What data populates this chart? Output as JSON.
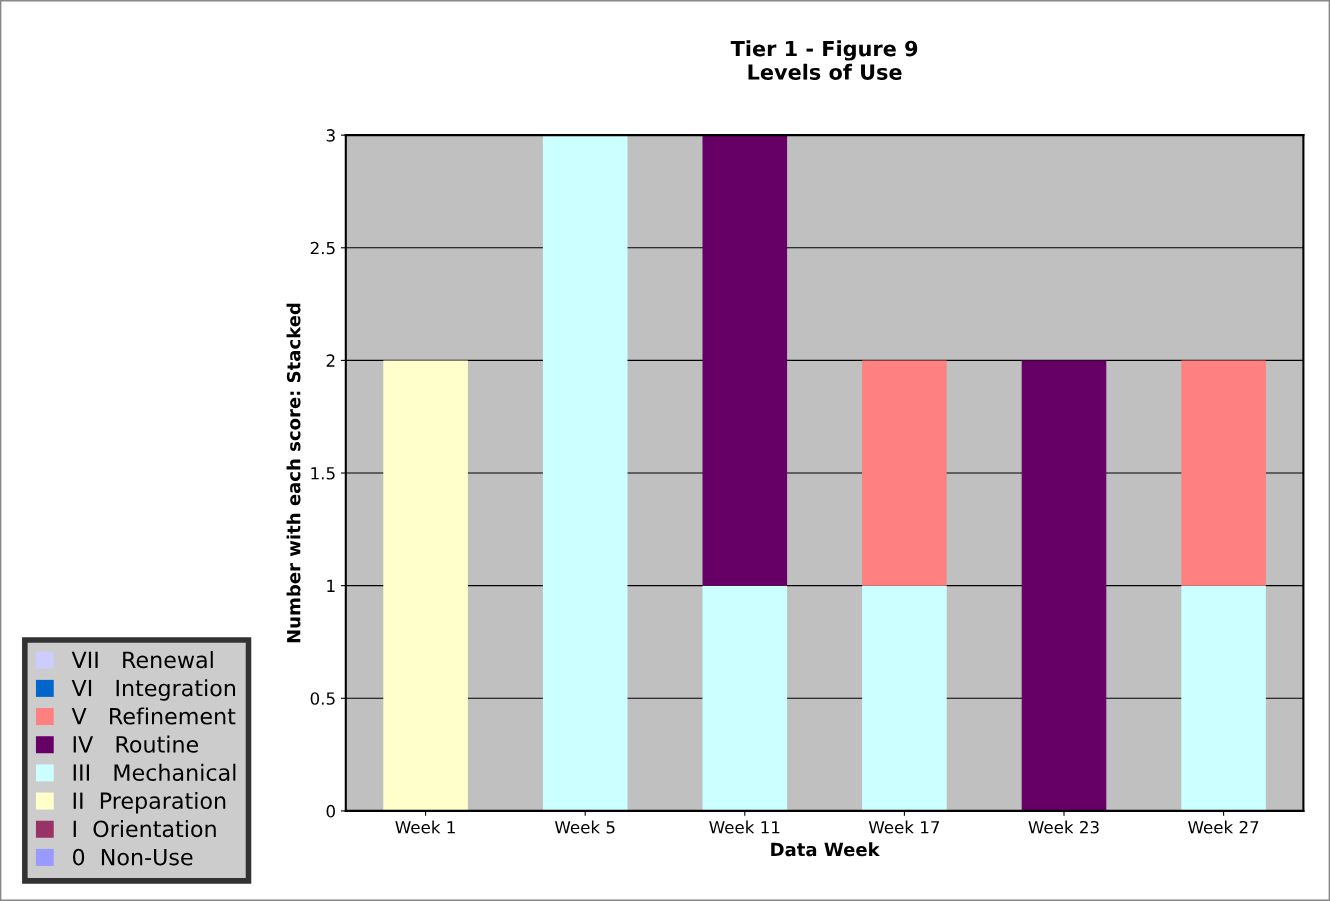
{
  "chart_data": {
    "type": "bar",
    "stacked": true,
    "title": "Tier 1 - Figure 9\nLevels of Use",
    "xlabel": "Data Week",
    "ylabel": "Number with each score: Stacked",
    "categories": [
      "Week 1",
      "Week 5",
      "Week 11",
      "Week 17",
      "Week 23",
      "Week 27"
    ],
    "series": [
      {
        "name": "0  Non-Use",
        "color": "#9999ff",
        "values": [
          0,
          0,
          0,
          0,
          0,
          0
        ]
      },
      {
        "name": "I  Orientation",
        "color": "#993366",
        "values": [
          0,
          0,
          0,
          0,
          0,
          0
        ]
      },
      {
        "name": "II  Preparation",
        "color": "#ffffcc",
        "values": [
          2,
          0,
          0,
          0,
          0,
          0
        ]
      },
      {
        "name": "III   Mechanical",
        "color": "#ccffff",
        "values": [
          0,
          3,
          1,
          1,
          0,
          1
        ]
      },
      {
        "name": "IV   Routine",
        "color": "#660066",
        "values": [
          0,
          0,
          2,
          0,
          2,
          0
        ]
      },
      {
        "name": "V   Refinement",
        "color": "#ff8080",
        "values": [
          0,
          0,
          0,
          1,
          0,
          1
        ]
      },
      {
        "name": "VI   Integration",
        "color": "#0066cc",
        "values": [
          0,
          0,
          0,
          0,
          0,
          0
        ]
      },
      {
        "name": "VII   Renewal",
        "color": "#ccccff",
        "values": [
          0,
          0,
          0,
          0,
          0,
          0
        ]
      }
    ],
    "ylim": [
      0,
      3
    ],
    "yticks": [
      0,
      0.5,
      1,
      1.5,
      2,
      2.5,
      3
    ],
    "grid": "y",
    "legend": "left"
  }
}
